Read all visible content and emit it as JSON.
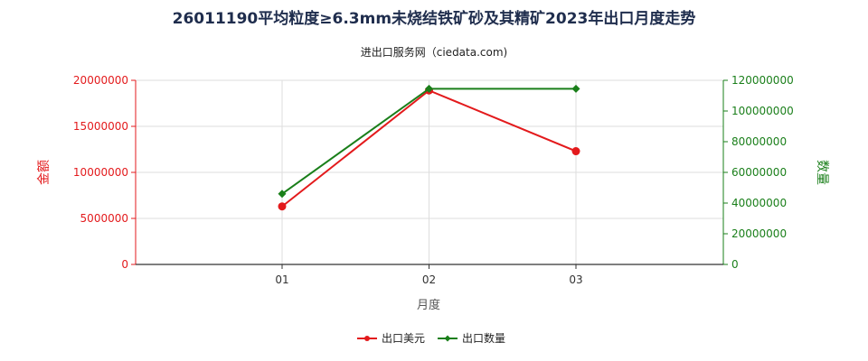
{
  "chart_data": {
    "type": "line",
    "title": "26011190平均粒度≥6.3mm未烧结铁矿砂及其精矿2023年出口月度走势",
    "subtitle": "进出口服务网（ciedata.com)",
    "xlabel": "月度",
    "ylabel_left": "金额",
    "ylabel_right": "数量",
    "categories": [
      "01",
      "02",
      "03"
    ],
    "y_left": {
      "min": 0,
      "max": 20000000,
      "ticks": [
        "0",
        "5000000",
        "10000000",
        "15000000",
        "20000000"
      ]
    },
    "y_right": {
      "min": 0,
      "max": 120000000,
      "ticks": [
        "0",
        "20000000",
        "40000000",
        "60000000",
        "80000000",
        "100000000",
        "120000000"
      ]
    },
    "grid": true,
    "legend_position": "bottom-center",
    "series": [
      {
        "name": "出口美元",
        "axis": "left",
        "color": "#e31a1c",
        "marker": "circle",
        "values": [
          6300000,
          18900000,
          12300000
        ]
      },
      {
        "name": "出口数量",
        "axis": "right",
        "color": "#1a7f1a",
        "marker": "diamond",
        "values": [
          46000000,
          114500000,
          114500000
        ]
      }
    ]
  }
}
